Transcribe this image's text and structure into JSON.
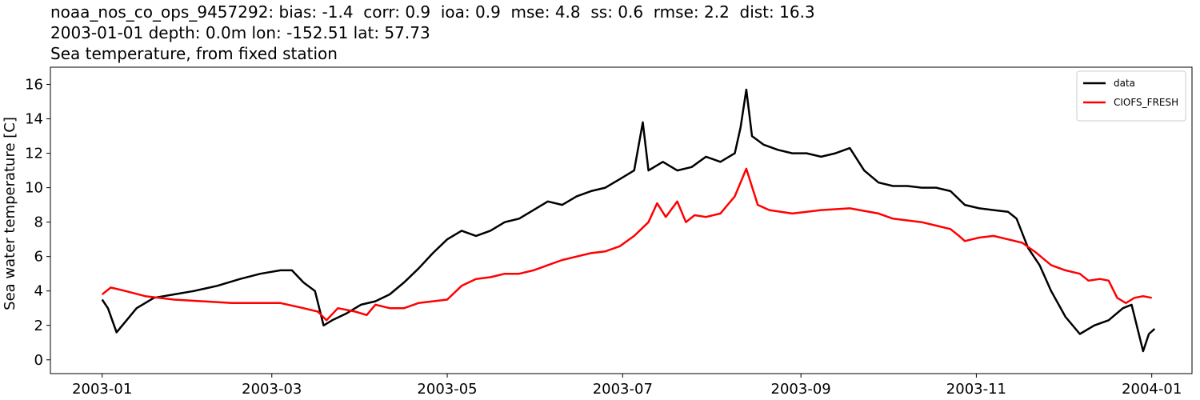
{
  "chart_data": {
    "type": "line",
    "title": [
      "noaa_nos_co_ops_9457292: bias: -1.4  corr: 0.9  ioa: 0.9  mse: 4.8  ss: 0.6  rmse: 2.2  dist: 16.3",
      "2003-01-01 depth: 0.0m lon: -152.51 lat: 57.73",
      "Sea temperature, from fixed station"
    ],
    "ylabel": "Sea water temperature [C]",
    "xlim": [
      -18,
      379
    ],
    "xticks": [
      {
        "value": 0,
        "label": "2003-01"
      },
      {
        "value": 59,
        "label": "2003-03"
      },
      {
        "value": 120,
        "label": "2003-05"
      },
      {
        "value": 181,
        "label": "2003-07"
      },
      {
        "value": 243,
        "label": "2003-09"
      },
      {
        "value": 304,
        "label": "2003-11"
      },
      {
        "value": 365,
        "label": "2004-01"
      }
    ],
    "ylim": [
      -0.8,
      17.0
    ],
    "yticks": [
      0,
      2,
      4,
      6,
      8,
      10,
      12,
      14,
      16
    ],
    "grid": false,
    "legend": "upper right",
    "series": [
      {
        "name": "data",
        "color": "#000000",
        "x": [
          0,
          2,
          5,
          8,
          12,
          18,
          25,
          32,
          40,
          48,
          55,
          62,
          66,
          70,
          74,
          77,
          80,
          85,
          90,
          95,
          100,
          105,
          110,
          115,
          120,
          125,
          130,
          135,
          140,
          145,
          150,
          155,
          160,
          165,
          170,
          175,
          180,
          185,
          188,
          190,
          195,
          200,
          205,
          210,
          215,
          220,
          222,
          224,
          226,
          230,
          235,
          240,
          245,
          250,
          255,
          260,
          265,
          270,
          275,
          280,
          285,
          290,
          295,
          300,
          305,
          310,
          315,
          318,
          322,
          326,
          330,
          335,
          340,
          345,
          350,
          355,
          358,
          362,
          364,
          366
        ],
        "values": [
          3.5,
          3.0,
          1.6,
          2.2,
          3.0,
          3.6,
          3.8,
          4.0,
          4.3,
          4.7,
          5.0,
          5.2,
          5.2,
          4.5,
          4.0,
          2.0,
          2.3,
          2.7,
          3.2,
          3.4,
          3.8,
          4.5,
          5.3,
          6.2,
          7.0,
          7.5,
          7.2,
          7.5,
          8.0,
          8.2,
          8.7,
          9.2,
          9.0,
          9.5,
          9.8,
          10.0,
          10.5,
          11.0,
          13.8,
          11.0,
          11.5,
          11.0,
          11.2,
          11.8,
          11.5,
          12.0,
          13.5,
          15.7,
          13.0,
          12.5,
          12.2,
          12.0,
          12.0,
          11.8,
          12.0,
          12.3,
          11.0,
          10.3,
          10.1,
          10.1,
          10.0,
          10.0,
          9.8,
          9.0,
          8.8,
          8.7,
          8.6,
          8.2,
          6.5,
          5.5,
          4.0,
          2.5,
          1.5,
          2.0,
          2.3,
          3.0,
          3.2,
          0.5,
          1.5,
          1.8
        ]
      },
      {
        "name": "CIOFS_FRESH",
        "color": "#ff0000",
        "x": [
          0,
          3,
          8,
          15,
          25,
          35,
          45,
          55,
          62,
          70,
          75,
          78,
          82,
          88,
          92,
          95,
          100,
          105,
          110,
          115,
          120,
          125,
          130,
          135,
          140,
          145,
          150,
          155,
          160,
          165,
          170,
          175,
          180,
          185,
          190,
          193,
          196,
          200,
          203,
          206,
          210,
          215,
          220,
          224,
          228,
          232,
          240,
          250,
          260,
          270,
          275,
          280,
          285,
          290,
          295,
          298,
          300,
          305,
          310,
          315,
          320,
          325,
          330,
          335,
          340,
          343,
          347,
          350,
          353,
          356,
          359,
          362,
          365
        ],
        "values": [
          3.8,
          4.2,
          4.0,
          3.7,
          3.5,
          3.4,
          3.3,
          3.3,
          3.3,
          3.0,
          2.8,
          2.3,
          3.0,
          2.8,
          2.6,
          3.2,
          3.0,
          3.0,
          3.3,
          3.4,
          3.5,
          4.3,
          4.7,
          4.8,
          5.0,
          5.0,
          5.2,
          5.5,
          5.8,
          6.0,
          6.2,
          6.3,
          6.6,
          7.2,
          8.0,
          9.1,
          8.3,
          9.2,
          8.0,
          8.4,
          8.3,
          8.5,
          9.5,
          11.1,
          9.0,
          8.7,
          8.5,
          8.7,
          8.8,
          8.5,
          8.2,
          8.1,
          8.0,
          7.8,
          7.6,
          7.2,
          6.9,
          7.1,
          7.2,
          7.0,
          6.8,
          6.2,
          5.5,
          5.2,
          5.0,
          4.6,
          4.7,
          4.6,
          3.6,
          3.3,
          3.6,
          3.7,
          3.6
        ]
      }
    ]
  }
}
